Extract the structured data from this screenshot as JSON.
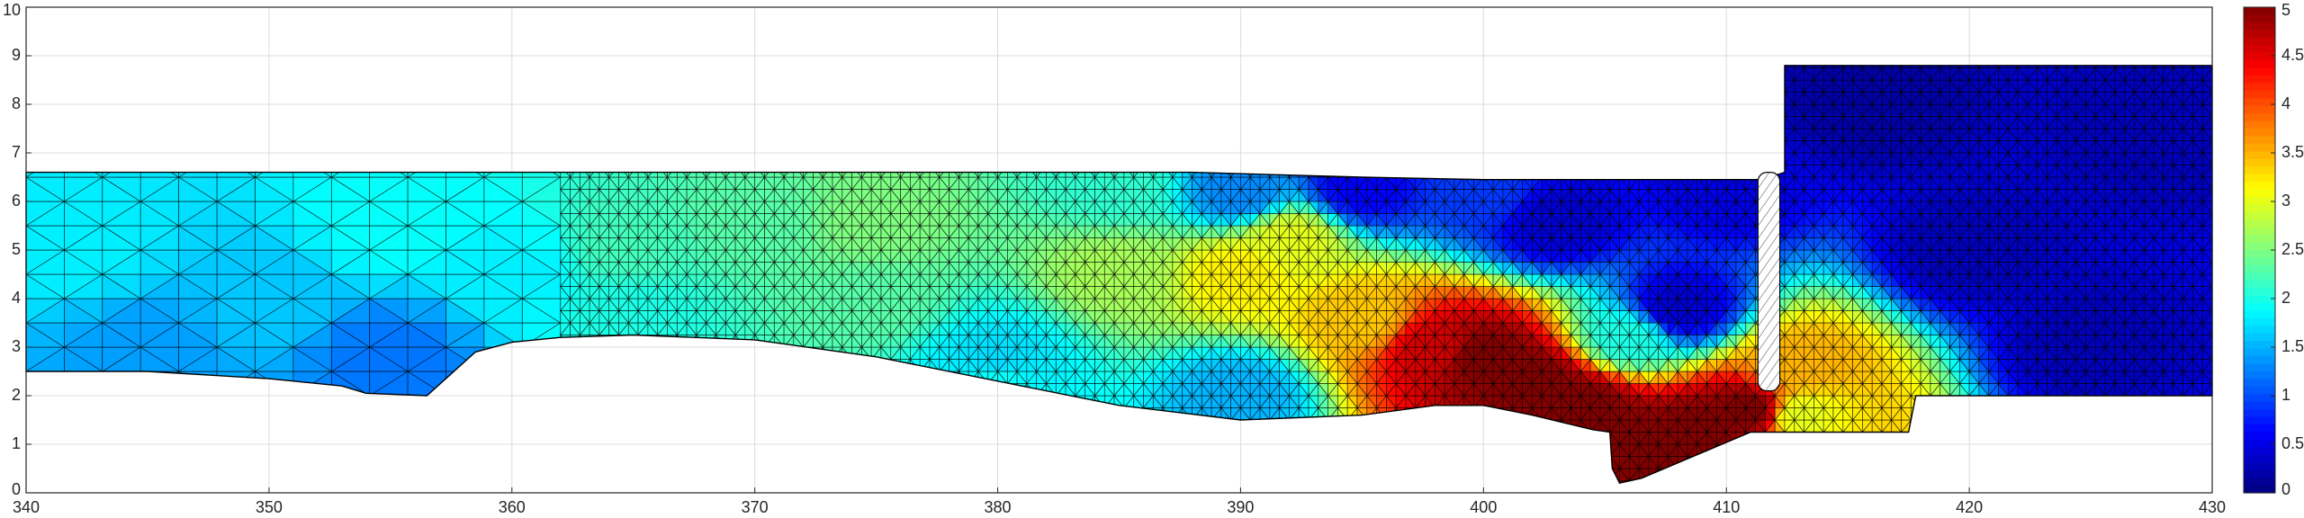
{
  "chart_data": {
    "type": "mesh",
    "colormap": "jet",
    "grid": true,
    "xlim": [
      340,
      430
    ],
    "xticks": [
      340,
      350,
      360,
      370,
      380,
      390,
      400,
      410,
      420,
      430
    ],
    "ylim": [
      0,
      10
    ],
    "yticks": [
      0,
      1,
      2,
      3,
      4,
      5,
      6,
      7,
      8,
      9,
      10
    ],
    "clim": [
      0,
      5
    ],
    "cticks": [
      0,
      0.5,
      1,
      1.5,
      2,
      2.5,
      3,
      3.5,
      4,
      4.5,
      5
    ],
    "boundary": {
      "x": [
        340,
        345,
        350,
        353,
        354,
        356.5,
        358.5,
        360,
        362,
        365,
        370,
        375,
        380,
        385,
        390,
        395,
        398,
        400,
        402,
        404.5,
        405.2,
        405.3,
        405.6,
        406.5,
        411,
        417.5,
        417.8,
        430,
        430,
        412.4,
        412.4,
        411.5,
        405,
        400,
        395,
        388,
        372.5,
        340
      ],
      "y": [
        2.5,
        2.5,
        2.35,
        2.2,
        2.05,
        2.0,
        2.9,
        3.1,
        3.2,
        3.25,
        3.15,
        2.8,
        2.3,
        1.8,
        1.5,
        1.6,
        1.8,
        1.8,
        1.6,
        1.3,
        1.25,
        0.5,
        0.2,
        0.3,
        1.25,
        1.25,
        2.0,
        2.0,
        8.8,
        8.8,
        6.6,
        6.45,
        6.45,
        6.45,
        6.5,
        6.6,
        6.6,
        6.6
      ]
    },
    "field": {
      "x": [
        342,
        345,
        350,
        355,
        355,
        360,
        365,
        365,
        370,
        375,
        375,
        380,
        385,
        385,
        390,
        390,
        392,
        395,
        398,
        400,
        402,
        404,
        405,
        407,
        409,
        411,
        412.8,
        413,
        403,
        408,
        400,
        420,
        425,
        428,
        395,
        410,
        380,
        390,
        416,
        406
      ],
      "y": [
        5,
        3,
        4,
        5.5,
        2.8,
        4.5,
        5,
        3.8,
        5.5,
        5.5,
        4,
        2.7,
        6.3,
        4.5,
        4.5,
        2,
        5.2,
        3.6,
        3.0,
        2.8,
        2.3,
        1.8,
        1.2,
        0.8,
        1.3,
        1.7,
        2.6,
        1.6,
        5.6,
        3.8,
        6.2,
        5,
        3,
        7.5,
        6.3,
        6.2,
        2.4,
        6.2,
        8,
        3.2
      ],
      "values": [
        1.8,
        1.4,
        1.6,
        1.9,
        1.2,
        1.8,
        2.2,
        2.0,
        2.3,
        2.5,
        2.3,
        1.7,
        2.1,
        2.7,
        3.2,
        1.5,
        3.0,
        3.4,
        4.6,
        5,
        5,
        5,
        5,
        5,
        5,
        5,
        3.5,
        3.0,
        0.4,
        0.4,
        0.9,
        0.3,
        0.3,
        0.3,
        0.6,
        0.5,
        1.9,
        1.3,
        0.2,
        2.0
      ]
    }
  }
}
